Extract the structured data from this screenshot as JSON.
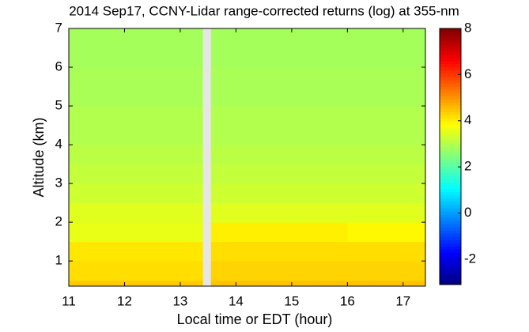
{
  "chart_data": {
    "type": "heatmap",
    "title": "2014 Sep17, CCNY-Lidar range-corrected returns (log) at 355-nm",
    "x_label": "Local time or EDT (hour)",
    "y_label": "Altitude (km)",
    "x_bins": [
      11,
      11.5,
      12,
      12.5,
      13,
      13.4,
      13.55,
      14,
      14.5,
      15,
      15.5,
      16,
      16.5,
      17,
      17.4
    ],
    "y_bins": [
      0.35,
      0.5,
      1,
      1.5,
      2,
      2.5,
      3,
      3.5,
      4,
      5,
      6,
      7
    ],
    "values": [
      [
        4.4,
        4.4,
        4.4,
        4.4,
        4.4,
        null,
        4.5,
        4.5,
        4.5,
        4.5,
        4.5,
        4.5,
        4.5,
        4.5
      ],
      [
        4.2,
        4.2,
        4.2,
        4.2,
        4.2,
        null,
        4.3,
        4.3,
        4.3,
        4.3,
        4.3,
        4.3,
        4.3,
        4.3
      ],
      [
        4.1,
        4.1,
        4.1,
        4.1,
        4.1,
        null,
        4.2,
        4.2,
        4.2,
        4.2,
        4.2,
        4.2,
        4.2,
        4.2
      ],
      [
        3.6,
        3.6,
        3.6,
        3.6,
        3.6,
        null,
        4.0,
        4.0,
        4.0,
        4.0,
        4.0,
        3.9,
        3.9,
        3.9
      ],
      [
        3.5,
        3.5,
        3.5,
        3.5,
        3.5,
        null,
        3.5,
        3.5,
        3.5,
        3.5,
        3.5,
        3.5,
        3.5,
        3.5
      ],
      [
        3.3,
        3.3,
        3.3,
        3.3,
        3.3,
        null,
        3.3,
        3.3,
        3.3,
        3.3,
        3.3,
        3.3,
        3.3,
        3.3
      ],
      [
        3.2,
        3.2,
        3.2,
        3.2,
        3.2,
        null,
        3.2,
        3.2,
        3.2,
        3.2,
        3.2,
        3.2,
        3.2,
        3.2
      ],
      [
        3.1,
        3.1,
        3.1,
        3.1,
        3.1,
        null,
        3.1,
        3.1,
        3.1,
        3.1,
        3.1,
        3.1,
        3.1,
        3.1
      ],
      [
        3.0,
        3.0,
        3.0,
        3.0,
        3.0,
        null,
        3.0,
        3.0,
        3.0,
        3.0,
        3.0,
        3.0,
        3.0,
        3.0
      ],
      [
        2.9,
        2.9,
        2.9,
        2.9,
        2.9,
        null,
        2.9,
        2.9,
        2.9,
        2.9,
        2.9,
        2.9,
        2.9,
        2.9
      ],
      [
        2.85,
        2.85,
        2.85,
        2.85,
        2.85,
        null,
        2.85,
        2.85,
        2.85,
        2.85,
        2.85,
        2.85,
        2.85,
        2.85
      ]
    ],
    "xlim": [
      11,
      17.4
    ],
    "xticks": [
      11,
      12,
      13,
      14,
      15,
      16,
      17
    ],
    "ylim": [
      0.35,
      7
    ],
    "yticks": [
      1,
      2,
      3,
      4,
      5,
      6,
      7
    ],
    "clim": [
      -3.1,
      8
    ],
    "cticks": [
      -2,
      0,
      2,
      4,
      6,
      8
    ],
    "colormap": "jet"
  }
}
